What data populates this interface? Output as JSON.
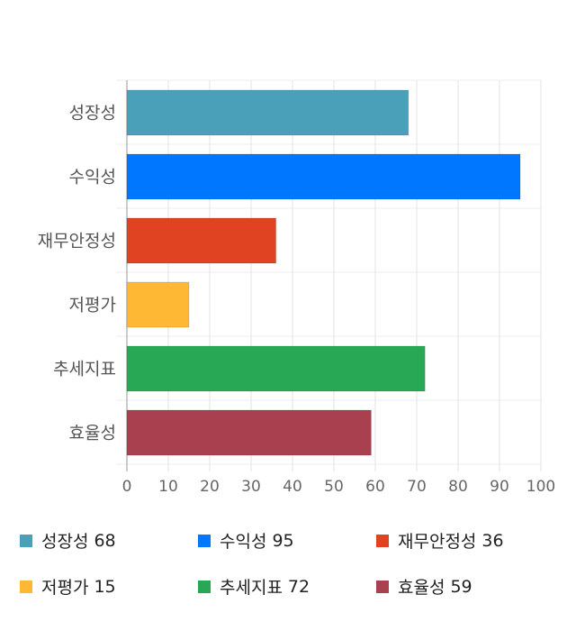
{
  "chart_data": {
    "type": "bar",
    "orientation": "horizontal",
    "categories": [
      "성장성",
      "수익성",
      "재무안정성",
      "저평가",
      "추세지표",
      "효율성"
    ],
    "values": [
      68,
      95,
      36,
      15,
      72,
      59
    ],
    "colors": [
      "#4aa0b8",
      "#0077ff",
      "#e04322",
      "#ffb833",
      "#28a855",
      "#a8404f"
    ],
    "xlim": [
      0,
      100
    ],
    "xticks": [
      "0",
      "10",
      "20",
      "30",
      "40",
      "50",
      "60",
      "70",
      "80",
      "90",
      "100"
    ],
    "grid": true,
    "legend_placement": "bottom",
    "legend": [
      {
        "label": "성장성",
        "value": "68"
      },
      {
        "label": "수익성",
        "value": "95"
      },
      {
        "label": "재무안정성",
        "value": "36"
      },
      {
        "label": "저평가",
        "value": "15"
      },
      {
        "label": "추세지표",
        "value": "72"
      },
      {
        "label": "효율성",
        "value": "59"
      }
    ]
  }
}
